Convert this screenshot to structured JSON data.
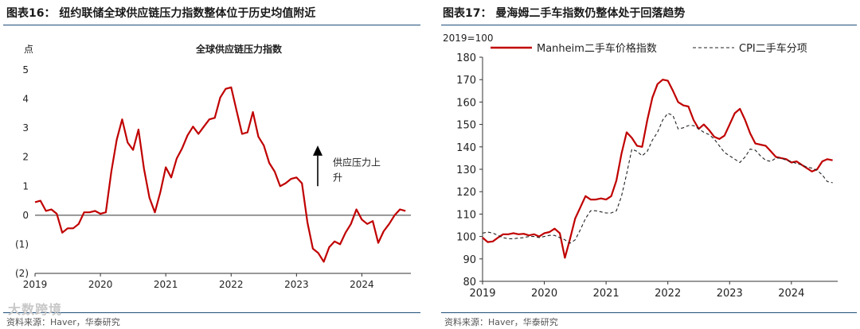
{
  "left": {
    "figure_title": "图表16：   纽约联储全球供应链压力指数整体位于历史均值附近",
    "source": "资料来源：Haver，华泰研究",
    "annotation": [
      "供应压力上",
      "升"
    ]
  },
  "right": {
    "figure_title": "图表17：   曼海姆二手车指数仍整体处于回落趋势",
    "source": "资料来源：Haver，华泰研究"
  },
  "watermark": "大数跨境",
  "colors": {
    "red": "#c00000",
    "dark": "#222222",
    "rule": "#1f4e79"
  },
  "chart_data": [
    {
      "type": "line",
      "title": "全球供应链压力指数",
      "ylabel": "点",
      "xlabel": "",
      "ylim": [
        -2,
        5
      ],
      "yticks": [
        5,
        4,
        3,
        2,
        1,
        0,
        -1,
        -2
      ],
      "ytick_labels": [
        "5",
        "4",
        "3",
        "2",
        "1",
        "0",
        "(1)",
        "(2)"
      ],
      "xlim": [
        2019,
        2024.75
      ],
      "xticks": [
        2019,
        2020,
        2021,
        2022,
        2023,
        2024
      ],
      "xtick_labels": [
        "2019",
        "2020",
        "2021",
        "2022",
        "2023",
        "2024"
      ],
      "series": [
        {
          "name": "全球供应链压力指数",
          "x": [
            2019.0,
            2019.083,
            2019.167,
            2019.25,
            2019.333,
            2019.417,
            2019.5,
            2019.583,
            2019.667,
            2019.75,
            2019.833,
            2019.917,
            2020.0,
            2020.083,
            2020.167,
            2020.25,
            2020.333,
            2020.417,
            2020.5,
            2020.583,
            2020.667,
            2020.75,
            2020.833,
            2020.917,
            2021.0,
            2021.083,
            2021.167,
            2021.25,
            2021.333,
            2021.417,
            2021.5,
            2021.583,
            2021.667,
            2021.75,
            2021.833,
            2021.917,
            2022.0,
            2022.083,
            2022.167,
            2022.25,
            2022.333,
            2022.417,
            2022.5,
            2022.583,
            2022.667,
            2022.75,
            2022.833,
            2022.917,
            2023.0,
            2023.083,
            2023.167,
            2023.25,
            2023.333,
            2023.417,
            2023.5,
            2023.583,
            2023.667,
            2023.75,
            2023.833,
            2023.917,
            2024.0,
            2024.083,
            2024.167,
            2024.25,
            2024.333,
            2024.417,
            2024.5,
            2024.583,
            2024.667
          ],
          "values": [
            0.45,
            0.5,
            0.15,
            0.2,
            0.05,
            -0.6,
            -0.45,
            -0.45,
            -0.3,
            0.1,
            0.1,
            0.15,
            0.05,
            0.1,
            1.5,
            2.6,
            3.3,
            2.5,
            2.25,
            2.95,
            1.6,
            0.6,
            0.1,
            0.8,
            1.65,
            1.3,
            1.95,
            2.3,
            2.75,
            3.05,
            2.8,
            3.05,
            3.3,
            3.35,
            4.05,
            4.35,
            4.4,
            3.6,
            2.8,
            2.85,
            3.55,
            2.7,
            2.4,
            1.8,
            1.5,
            1.0,
            1.1,
            1.25,
            1.3,
            1.1,
            -0.25,
            -1.15,
            -1.3,
            -1.6,
            -1.1,
            -0.9,
            -1.0,
            -0.6,
            -0.3,
            0.2,
            -0.15,
            -0.3,
            -0.2,
            -0.95,
            -0.55,
            -0.3,
            0.0,
            0.2,
            0.15
          ]
        }
      ]
    },
    {
      "type": "line",
      "title": "",
      "ylabel": "2019=100",
      "xlabel": "",
      "ylim": [
        80,
        180
      ],
      "yticks": [
        80,
        90,
        100,
        110,
        120,
        130,
        140,
        150,
        160,
        170,
        180
      ],
      "xlim": [
        2019,
        2024.75
      ],
      "xticks": [
        2019,
        2020,
        2021,
        2022,
        2023,
        2024
      ],
      "xtick_labels": [
        "2019",
        "2020",
        "2021",
        "2022",
        "2023",
        "2024"
      ],
      "legend": [
        "Manheim二手车价格指数",
        "CPI二手车分项"
      ],
      "series": [
        {
          "name": "Manheim二手车价格指数",
          "style": "solid",
          "x": [
            2019.0,
            2019.083,
            2019.167,
            2019.25,
            2019.333,
            2019.417,
            2019.5,
            2019.583,
            2019.667,
            2019.75,
            2019.833,
            2019.917,
            2020.0,
            2020.083,
            2020.167,
            2020.25,
            2020.333,
            2020.417,
            2020.5,
            2020.583,
            2020.667,
            2020.75,
            2020.833,
            2020.917,
            2021.0,
            2021.083,
            2021.167,
            2021.25,
            2021.333,
            2021.417,
            2021.5,
            2021.583,
            2021.667,
            2021.75,
            2021.833,
            2021.917,
            2022.0,
            2022.083,
            2022.167,
            2022.25,
            2022.333,
            2022.417,
            2022.5,
            2022.583,
            2022.667,
            2022.75,
            2022.833,
            2022.917,
            2023.0,
            2023.083,
            2023.167,
            2023.25,
            2023.333,
            2023.417,
            2023.5,
            2023.583,
            2023.667,
            2023.75,
            2023.833,
            2023.917,
            2024.0,
            2024.083,
            2024.167,
            2024.25,
            2024.333,
            2024.417,
            2024.5,
            2024.583,
            2024.667
          ],
          "values": [
            99.5,
            97.5,
            97.8,
            99.5,
            101.0,
            101.0,
            101.5,
            101.0,
            101.2,
            100.5,
            101.0,
            100.0,
            101.5,
            102.0,
            103.5,
            101.5,
            90.5,
            99.0,
            108.0,
            113.0,
            118.0,
            116.5,
            116.5,
            117.0,
            116.5,
            118.0,
            125.0,
            137.0,
            146.5,
            144.0,
            140.5,
            140.0,
            152.0,
            162.0,
            168.0,
            170.0,
            169.5,
            165.0,
            160.0,
            158.5,
            158.0,
            152.0,
            148.0,
            150.0,
            147.5,
            144.5,
            143.5,
            145.0,
            150.0,
            155.0,
            157.0,
            152.0,
            146.0,
            141.5,
            141.0,
            140.5,
            138.0,
            135.5,
            135.0,
            134.5,
            133.0,
            133.5,
            132.0,
            130.5,
            129.0,
            130.0,
            133.5,
            134.5,
            134.0
          ]
        },
        {
          "name": "CPI二手车分项",
          "style": "dashed",
          "x": [
            2019.0,
            2019.083,
            2019.167,
            2019.25,
            2019.333,
            2019.417,
            2019.5,
            2019.583,
            2019.667,
            2019.75,
            2019.833,
            2019.917,
            2020.0,
            2020.083,
            2020.167,
            2020.25,
            2020.333,
            2020.417,
            2020.5,
            2020.583,
            2020.667,
            2020.75,
            2020.833,
            2020.917,
            2021.0,
            2021.083,
            2021.167,
            2021.25,
            2021.333,
            2021.417,
            2021.5,
            2021.583,
            2021.667,
            2021.75,
            2021.833,
            2021.917,
            2022.0,
            2022.083,
            2022.167,
            2022.25,
            2022.333,
            2022.417,
            2022.5,
            2022.583,
            2022.667,
            2022.75,
            2022.833,
            2022.917,
            2023.0,
            2023.083,
            2023.167,
            2023.25,
            2023.333,
            2023.417,
            2023.5,
            2023.583,
            2023.667,
            2023.75,
            2023.833,
            2023.917,
            2024.0,
            2024.083,
            2024.167,
            2024.25,
            2024.333,
            2024.417,
            2024.5,
            2024.583,
            2024.667
          ],
          "values": [
            101.5,
            102.0,
            101.5,
            100.5,
            99.5,
            99.0,
            99.0,
            99.3,
            99.5,
            100.0,
            100.0,
            99.5,
            100.0,
            100.5,
            100.5,
            99.5,
            98.5,
            97.0,
            98.5,
            103.0,
            108.0,
            111.5,
            111.5,
            111.0,
            110.5,
            110.5,
            111.5,
            118.0,
            128.0,
            139.0,
            138.0,
            136.0,
            138.0,
            143.0,
            146.5,
            152.0,
            155.0,
            154.0,
            148.0,
            148.5,
            149.5,
            149.5,
            148.0,
            146.5,
            145.5,
            143.5,
            140.5,
            137.5,
            136.0,
            134.5,
            133.0,
            135.5,
            139.0,
            138.5,
            136.0,
            134.0,
            133.5,
            135.0,
            135.0,
            134.0,
            133.5,
            132.5,
            132.0,
            131.0,
            130.5,
            129.5,
            127.5,
            124.5,
            124.0
          ]
        }
      ]
    }
  ]
}
